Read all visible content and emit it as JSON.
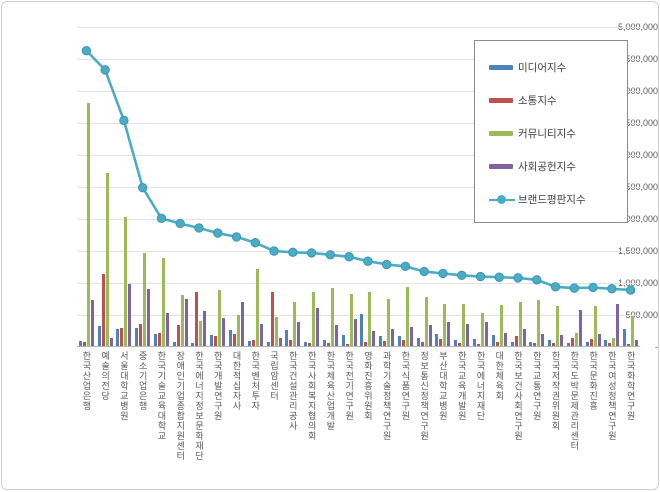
{
  "y_axis": {
    "max": 5000000,
    "step": 500000,
    "ticks": [
      "5,000,000",
      "4,500,000",
      "4,000,000",
      "3,500,000",
      "3,000,000",
      "2,500,000",
      "2,000,000",
      "1,500,000",
      "1,000,000",
      "500,000",
      "-"
    ]
  },
  "chart_data": {
    "type": "bar",
    "note_type": "grouped bars with overlaid line series",
    "grid": true,
    "legend_position": "top-right",
    "ylim": [
      0,
      5000000
    ],
    "categories": [
      "한국산업은행",
      "예술의전당",
      "서울대학교병원",
      "중소기업은행",
      "한국기술교육대학교",
      "장애인기업종합지원센터",
      "한국에너지정보문화재단",
      "한국개발연구원",
      "대한적십자사",
      "한국벤처투자",
      "국립암센터",
      "한국건설관리공사",
      "한국사회복지협의회",
      "한국체육산업개발",
      "한국전기연구원",
      "영화진흥위원회",
      "과학기술정책연구원",
      "한국식품연구원",
      "정보통신정책연구원",
      "부산대학교병원",
      "한국교육개발원",
      "한국에너지재단",
      "대한체육회",
      "한국보건사회연구원",
      "한국교통연구원",
      "한국저작권위원회",
      "한국도박문제관리센터",
      "한국문화진흥",
      "한국여성정책연구원",
      "한국화학연구원"
    ],
    "series": [
      {
        "name": "미디어지수",
        "type": "bar",
        "color": "#4F81BD",
        "values": [
          80000,
          310000,
          270000,
          280000,
          180000,
          60000,
          50000,
          170000,
          250000,
          80000,
          70000,
          250000,
          60000,
          100000,
          170000,
          500000,
          150000,
          160000,
          130000,
          180000,
          100000,
          110000,
          170000,
          70000,
          60000,
          100000,
          50000,
          60000,
          100000,
          260000
        ]
      },
      {
        "name": "소통지수",
        "type": "bar",
        "color": "#C0504D",
        "values": [
          60000,
          1130000,
          280000,
          350000,
          200000,
          330000,
          840000,
          160000,
          180000,
          100000,
          850000,
          100000,
          40000,
          40000,
          30000,
          70000,
          80000,
          90000,
          70000,
          110000,
          40000,
          30000,
          70000,
          160000,
          50000,
          50000,
          120000,
          110000,
          40000,
          30000
        ]
      },
      {
        "name": "커뮤니티지수",
        "type": "bar",
        "color": "#9BBB59",
        "values": [
          3790000,
          2700000,
          2020000,
          1460000,
          1380000,
          800000,
          390000,
          880000,
          490000,
          1210000,
          460000,
          690000,
          850000,
          900000,
          820000,
          840000,
          730000,
          920000,
          760000,
          650000,
          650000,
          510000,
          640000,
          680000,
          720000,
          630000,
          200000,
          630000,
          130000,
          470000
        ]
      },
      {
        "name": "사회공헌지수",
        "type": "bar",
        "color": "#8064A2",
        "values": [
          720000,
          130000,
          970000,
          890000,
          520000,
          730000,
          550000,
          440000,
          680000,
          340000,
          130000,
          370000,
          590000,
          330000,
          420000,
          240000,
          270000,
          300000,
          330000,
          380000,
          340000,
          380000,
          210000,
          260000,
          180000,
          170000,
          560000,
          190000,
          650000,
          100000
        ]
      },
      {
        "name": "브랜드평판지수",
        "type": "line",
        "color": "#4BACC6",
        "marker_stroke": "#3C96B4",
        "values": [
          4630000,
          4330000,
          3540000,
          2490000,
          2010000,
          1930000,
          1860000,
          1780000,
          1720000,
          1630000,
          1500000,
          1480000,
          1470000,
          1440000,
          1410000,
          1340000,
          1290000,
          1260000,
          1180000,
          1150000,
          1120000,
          1100000,
          1090000,
          1080000,
          1050000,
          940000,
          920000,
          930000,
          910000,
          890000
        ]
      }
    ]
  }
}
